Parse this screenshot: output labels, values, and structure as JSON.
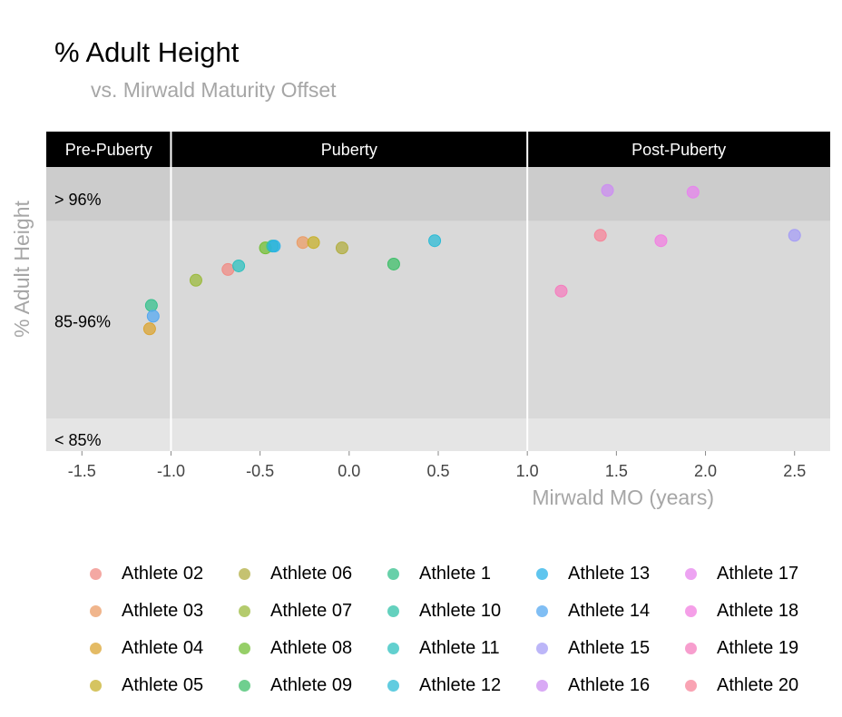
{
  "chart_data": {
    "type": "scatter",
    "title": "% Adult Height",
    "subtitle": "vs. Mirwald Maturity Offset",
    "xlabel": "Mirwald MO (years)",
    "ylabel": "% Adult Height",
    "xlim": [
      -1.7,
      2.7
    ],
    "x_ticks": [
      "-1.5",
      "-1.0",
      "-0.5",
      "0.0",
      "0.5",
      "1.0",
      "1.5",
      "2.0",
      "2.5"
    ],
    "x_tick_values": [
      -1.5,
      -1.0,
      -0.5,
      0.0,
      0.5,
      1.0,
      1.5,
      2.0,
      2.5
    ],
    "ylim": [
      83.2,
      99.0
    ],
    "bands": [
      {
        "label": "> 96%",
        "from": 96,
        "to": 99.0,
        "color": "#cccccc"
      },
      {
        "label": "85-96%",
        "from": 85,
        "to": 96,
        "color": "#d9d9d9"
      },
      {
        "label": "< 85%",
        "from": 83.2,
        "to": 85,
        "color": "#e5e5e5"
      }
    ],
    "phases": [
      {
        "label": "Pre-Puberty",
        "from": -1.7,
        "to": -1.0
      },
      {
        "label": "Puberty",
        "from": -1.0,
        "to": 1.0
      },
      {
        "label": "Post-Puberty",
        "from": 1.0,
        "to": 2.7
      }
    ],
    "series": [
      {
        "name": "Athlete 02",
        "color": "#f08b84",
        "points": [
          [
            -0.68,
            93.3
          ]
        ]
      },
      {
        "name": "Athlete 03",
        "color": "#eb9c66",
        "points": [
          [
            -0.26,
            94.8
          ]
        ]
      },
      {
        "name": "Athlete 04",
        "color": "#dba432",
        "points": [
          [
            -1.12,
            90.0
          ]
        ]
      },
      {
        "name": "Athlete 05",
        "color": "#c7b02c",
        "points": [
          [
            -0.2,
            94.8
          ]
        ]
      },
      {
        "name": "Athlete 06",
        "color": "#b1ae42",
        "points": [
          [
            -0.04,
            94.5
          ]
        ]
      },
      {
        "name": "Athlete 07",
        "color": "#9bb93c",
        "points": [
          [
            -0.86,
            92.7
          ]
        ]
      },
      {
        "name": "Athlete 08",
        "color": "#73bf35",
        "points": [
          [
            -0.47,
            94.5
          ]
        ]
      },
      {
        "name": "Athlete 09",
        "color": "#3fbf6a",
        "points": [
          [
            0.25,
            93.6
          ]
        ]
      },
      {
        "name": "Athlete 1",
        "color": "#35c08c",
        "points": [
          [
            -1.11,
            91.3
          ]
        ]
      },
      {
        "name": "Athlete 10",
        "color": "#30c1a8",
        "points": [
          [
            -0.43,
            94.6
          ]
        ]
      },
      {
        "name": "Athlete 11",
        "color": "#2ec0bf",
        "points": [
          [
            -0.62,
            93.5
          ]
        ]
      },
      {
        "name": "Athlete 12",
        "color": "#2cbbd6",
        "points": [
          [
            0.48,
            94.9
          ]
        ]
      },
      {
        "name": "Athlete 13",
        "color": "#2ab2e8",
        "points": [
          [
            -0.42,
            94.6
          ]
        ]
      },
      {
        "name": "Athlete 14",
        "color": "#55a8f0",
        "points": [
          [
            -1.1,
            90.7
          ]
        ]
      },
      {
        "name": "Athlete 15",
        "color": "#a59df5",
        "points": [
          [
            2.5,
            95.2
          ]
        ]
      },
      {
        "name": "Athlete 16",
        "color": "#cc8ef2",
        "points": [
          [
            1.45,
            97.7
          ]
        ]
      },
      {
        "name": "Athlete 17",
        "color": "#e784ee",
        "points": [
          [
            1.93,
            97.6
          ]
        ]
      },
      {
        "name": "Athlete 18",
        "color": "#f17fe0",
        "points": [
          [
            1.75,
            94.9
          ]
        ]
      },
      {
        "name": "Athlete 19",
        "color": "#f47dbd",
        "points": [
          [
            1.19,
            92.1
          ]
        ]
      },
      {
        "name": "Athlete 20",
        "color": "#f78499",
        "points": [
          [
            1.41,
            95.2
          ]
        ]
      }
    ],
    "legend": {
      "placement": "bottom",
      "columns": 5
    }
  }
}
